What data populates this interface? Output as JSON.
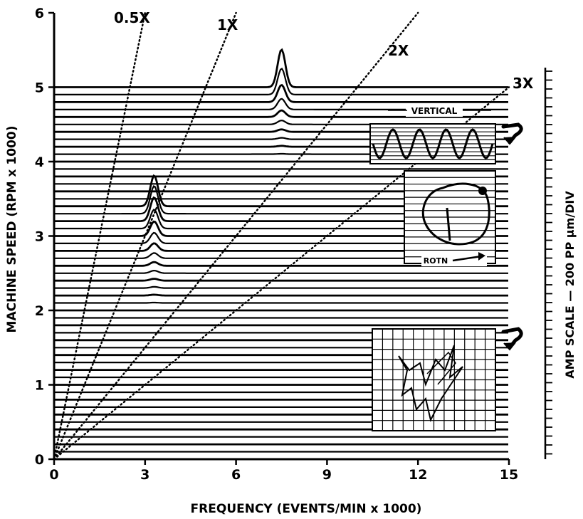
{
  "chart_data": {
    "type": "line",
    "subtype": "waterfall-cascade",
    "xlabel": "FREQUENCY (EVENTS/MIN x 1000)",
    "ylabel": "MACHINE SPEED (RPM x 1000)",
    "y2label": "AMP SCALE — 200 PP μm/DIV",
    "xlim": [
      0,
      15
    ],
    "ylim": [
      0,
      6
    ],
    "x_ticks": [
      "0",
      "3",
      "6",
      "9",
      "12",
      "15"
    ],
    "y_ticks": [
      "0",
      "1",
      "2",
      "3",
      "4",
      "5",
      "6"
    ],
    "x_tick_values": [
      0,
      3,
      6,
      9,
      12,
      15
    ],
    "y_tick_values": [
      0,
      1,
      2,
      3,
      4,
      5,
      6
    ],
    "order_lines": [
      {
        "name": "0.5X",
        "order": 0.5
      },
      {
        "name": "1X",
        "order": 1
      },
      {
        "name": "2X",
        "order": 2
      },
      {
        "name": "3X",
        "order": 3
      }
    ],
    "speed_range": [
      0,
      5
    ],
    "peaks": [
      {
        "speed": 3.4,
        "frequency": 3.3
      },
      {
        "speed": 5.4,
        "frequency": 7.5
      }
    ],
    "insets": {
      "orbit_top": {
        "label": "VERTICAL"
      },
      "orbit_mid": {
        "label": "ROTN"
      },
      "orbit_low": {
        "label": ""
      }
    },
    "grid": false,
    "color": "#000000"
  }
}
